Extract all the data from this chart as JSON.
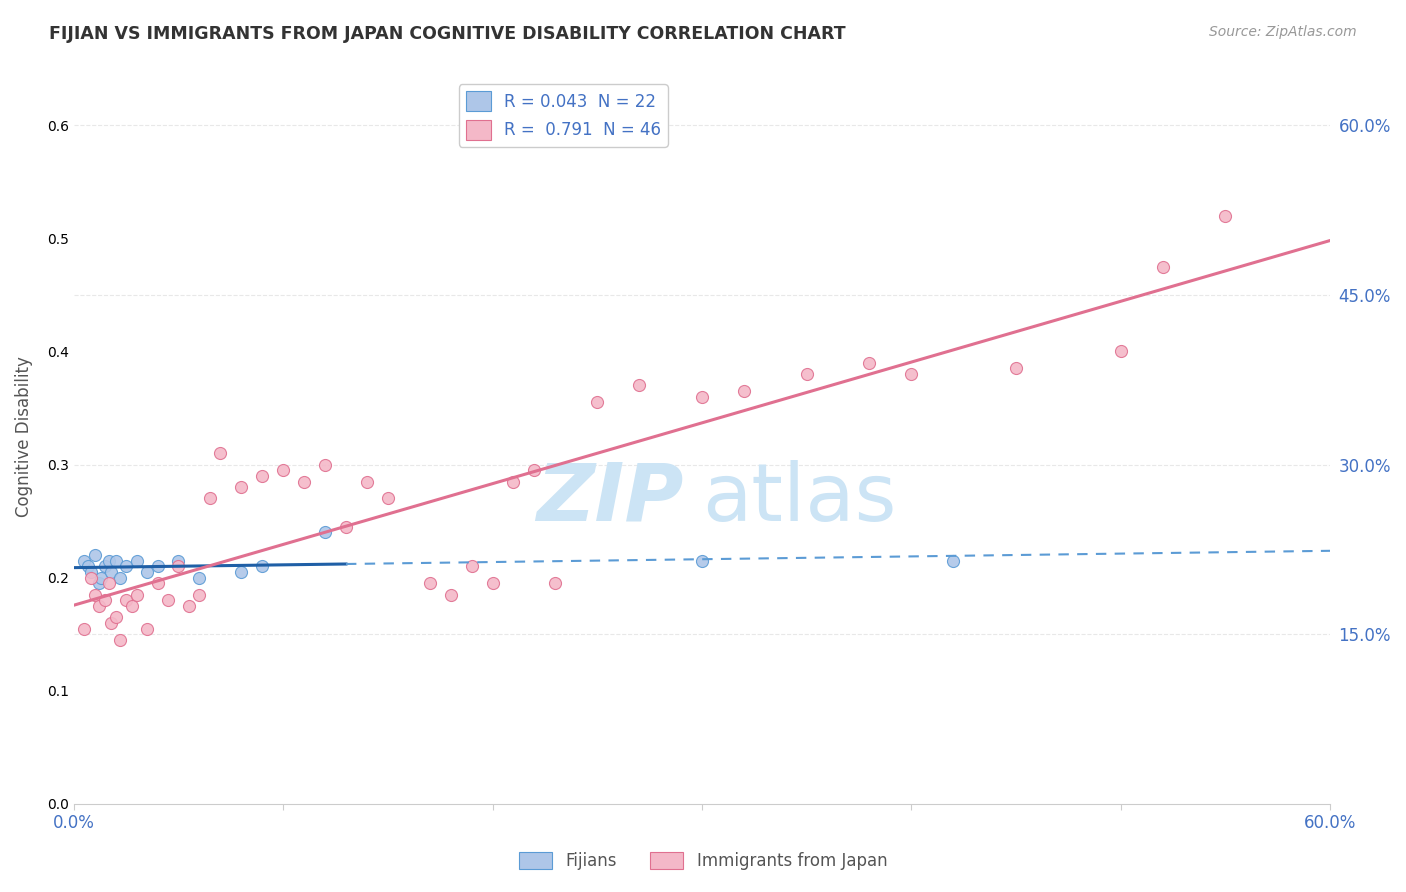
{
  "title": "FIJIAN VS IMMIGRANTS FROM JAPAN COGNITIVE DISABILITY CORRELATION CHART",
  "source": "Source: ZipAtlas.com",
  "ylabel": "Cognitive Disability",
  "xlim": [
    0,
    0.6
  ],
  "ylim": [
    0,
    0.65
  ],
  "yticks": [
    0.15,
    0.3,
    0.45,
    0.6
  ],
  "ytick_labels": [
    "15.0%",
    "30.0%",
    "45.0%",
    "60.0%"
  ],
  "fijians_x": [
    0.005,
    0.007,
    0.008,
    0.01,
    0.012,
    0.013,
    0.015,
    0.017,
    0.018,
    0.02,
    0.022,
    0.025,
    0.03,
    0.035,
    0.04,
    0.05,
    0.06,
    0.08,
    0.09,
    0.12,
    0.3,
    0.42
  ],
  "fijians_y": [
    0.215,
    0.21,
    0.205,
    0.22,
    0.195,
    0.2,
    0.21,
    0.215,
    0.205,
    0.215,
    0.2,
    0.21,
    0.215,
    0.205,
    0.21,
    0.215,
    0.2,
    0.205,
    0.21,
    0.24,
    0.215,
    0.215
  ],
  "japan_x": [
    0.005,
    0.008,
    0.01,
    0.012,
    0.015,
    0.017,
    0.018,
    0.02,
    0.022,
    0.025,
    0.028,
    0.03,
    0.035,
    0.04,
    0.045,
    0.05,
    0.055,
    0.06,
    0.065,
    0.07,
    0.08,
    0.09,
    0.1,
    0.11,
    0.12,
    0.13,
    0.14,
    0.15,
    0.17,
    0.18,
    0.19,
    0.2,
    0.21,
    0.22,
    0.23,
    0.25,
    0.27,
    0.3,
    0.32,
    0.35,
    0.38,
    0.4,
    0.45,
    0.5,
    0.52,
    0.55
  ],
  "japan_y": [
    0.155,
    0.2,
    0.185,
    0.175,
    0.18,
    0.195,
    0.16,
    0.165,
    0.145,
    0.18,
    0.175,
    0.185,
    0.155,
    0.195,
    0.18,
    0.21,
    0.175,
    0.185,
    0.27,
    0.31,
    0.28,
    0.29,
    0.295,
    0.285,
    0.3,
    0.245,
    0.285,
    0.27,
    0.195,
    0.185,
    0.21,
    0.195,
    0.285,
    0.295,
    0.195,
    0.355,
    0.37,
    0.36,
    0.365,
    0.38,
    0.39,
    0.38,
    0.385,
    0.4,
    0.475,
    0.52
  ],
  "fijian_color": "#aec6e8",
  "fijian_edge_color": "#5b9bd5",
  "japan_color": "#f4b8c8",
  "japan_edge_color": "#e07090",
  "fijian_line_solid_color": "#1f5fa6",
  "fijian_line_dash_color": "#5b9bd5",
  "japan_line_color": "#e07090",
  "legend_r_fijian": "0.043",
  "legend_n_fijian": "22",
  "legend_r_japan": "0.791",
  "legend_n_japan": "46",
  "watermark_zip": "ZIP",
  "watermark_atlas": "atlas",
  "watermark_color": "#cce4f5",
  "background_color": "#ffffff",
  "grid_color": "#e8e8e8",
  "title_color": "#333333",
  "tick_color": "#4472c4"
}
